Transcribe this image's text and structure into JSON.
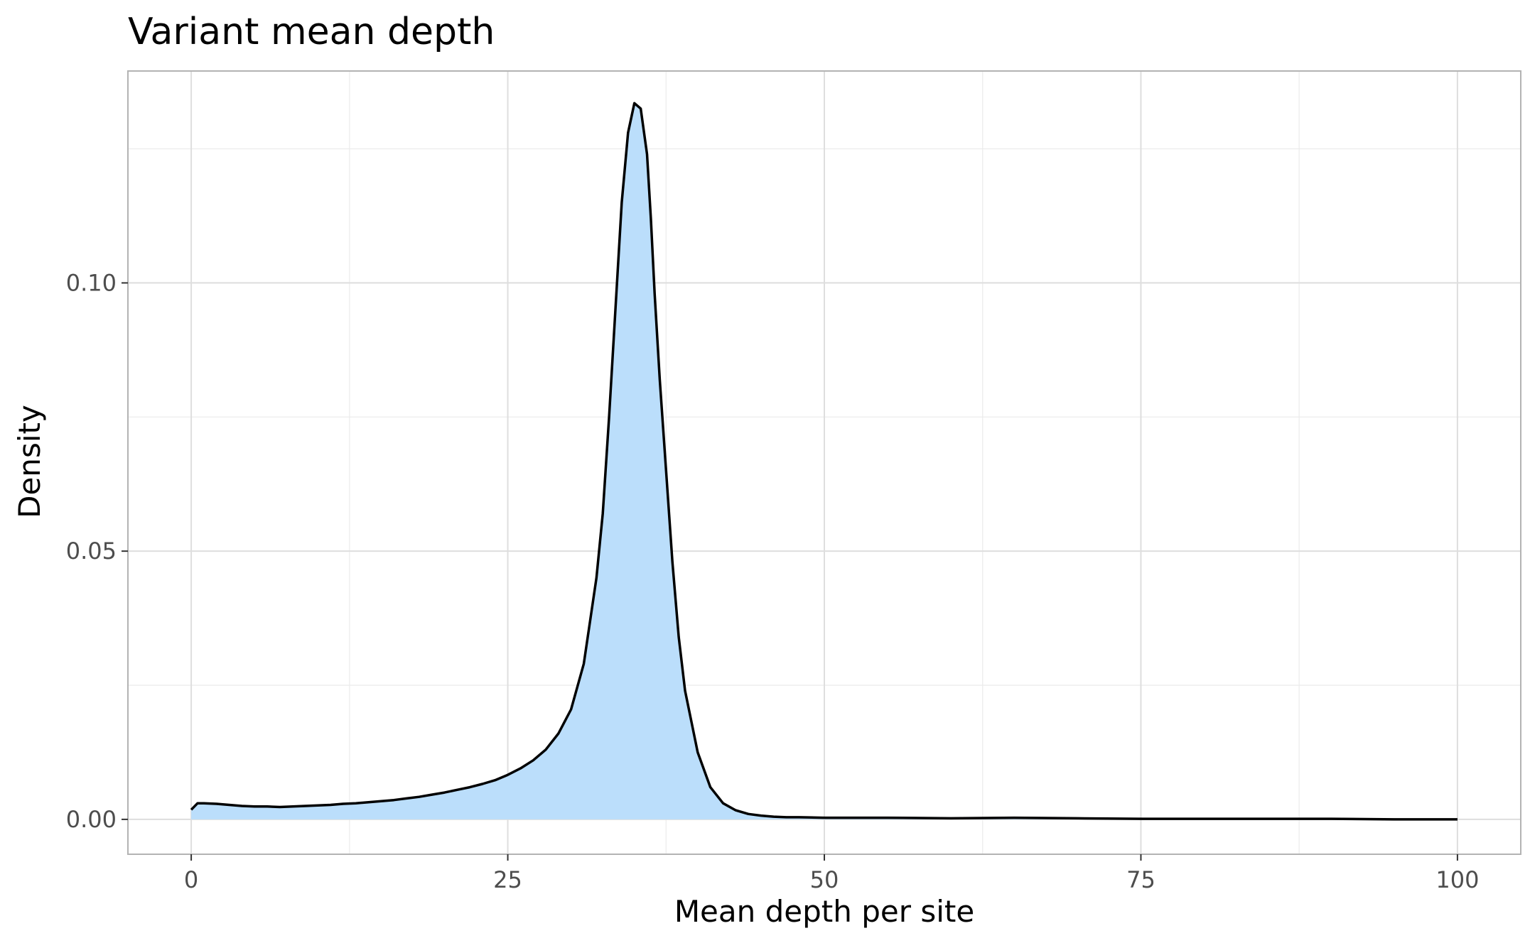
{
  "chart_data": {
    "type": "area",
    "title": "Variant mean depth",
    "xlabel": "Mean depth per site",
    "ylabel": "Density",
    "xlim": [
      -5,
      105
    ],
    "ylim": [
      -0.0065,
      0.1395
    ],
    "x_ticks": [
      0,
      25,
      50,
      75,
      100
    ],
    "x_tick_labels": [
      "0",
      "25",
      "50",
      "75",
      "100"
    ],
    "y_ticks": [
      0.0,
      0.05,
      0.1
    ],
    "y_tick_labels": [
      "0.00",
      "0.05",
      "0.10"
    ],
    "grid": true,
    "legend": "none",
    "fill_color": "#bbdefb",
    "line_color": "#000000",
    "series": [
      {
        "x": [
          0,
          0.5,
          1,
          2,
          3,
          4,
          5,
          6,
          7,
          8,
          9,
          10,
          11,
          12,
          13,
          14,
          15,
          16,
          17,
          18,
          19,
          20,
          21,
          22,
          23,
          24,
          25,
          26,
          27,
          28,
          29,
          30,
          31,
          32,
          32.5,
          33,
          33.5,
          34,
          34.5,
          35,
          35.5,
          36,
          36.3,
          36.6,
          37,
          37.5,
          38,
          38.5,
          39,
          40,
          41,
          42,
          43,
          44,
          45,
          46,
          47,
          48,
          50,
          55,
          60,
          65,
          70,
          75,
          80,
          85,
          90,
          95,
          100
        ],
        "y": [
          0.0018,
          0.003,
          0.003,
          0.0029,
          0.0027,
          0.0025,
          0.0024,
          0.0024,
          0.0023,
          0.0024,
          0.0025,
          0.0026,
          0.0027,
          0.0029,
          0.003,
          0.0032,
          0.0034,
          0.0036,
          0.0039,
          0.0042,
          0.0046,
          0.005,
          0.0055,
          0.006,
          0.0066,
          0.0073,
          0.0083,
          0.0095,
          0.011,
          0.013,
          0.016,
          0.0205,
          0.029,
          0.045,
          0.057,
          0.075,
          0.095,
          0.115,
          0.128,
          0.1335,
          0.1325,
          0.124,
          0.112,
          0.098,
          0.082,
          0.065,
          0.048,
          0.034,
          0.024,
          0.0125,
          0.006,
          0.003,
          0.0017,
          0.001,
          0.0007,
          0.0005,
          0.0004,
          0.0004,
          0.0003,
          0.0003,
          0.0002,
          0.0003,
          0.0002,
          0.0001,
          0.0001,
          0.0001,
          0.0001,
          0.0,
          0.0
        ]
      }
    ]
  }
}
